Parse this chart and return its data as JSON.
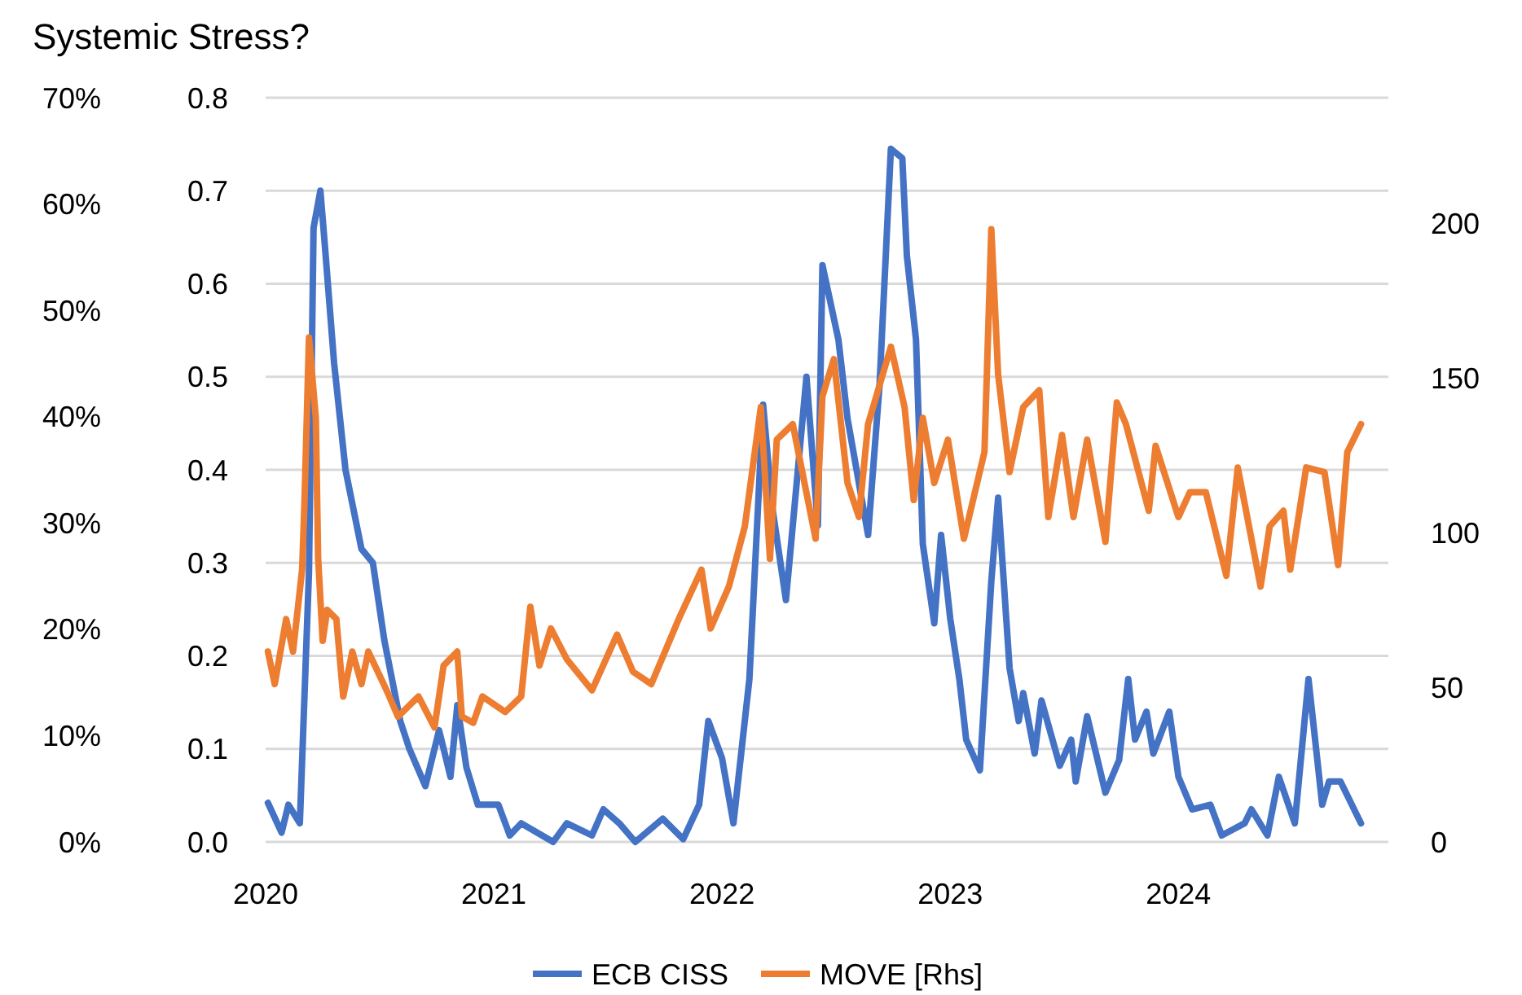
{
  "chart_data": {
    "type": "line",
    "title": "Systemic Stress?",
    "x": [
      2020.01,
      2020.07,
      2020.1,
      2020.15,
      2020.19,
      2020.21,
      2020.24,
      2020.26,
      2020.3,
      2020.35,
      2020.42,
      2020.47,
      2020.52,
      2020.59,
      2020.63,
      2020.7,
      2020.76,
      2020.81,
      2020.84,
      2020.88,
      2020.93,
      2021.02,
      2021.07,
      2021.12,
      2021.26,
      2021.32,
      2021.43,
      2021.48,
      2021.55,
      2021.62,
      2021.74,
      2021.83,
      2021.9,
      2021.94,
      2022.0,
      2022.05,
      2022.12,
      2022.18,
      2022.22,
      2022.28,
      2022.37,
      2022.42,
      2022.44,
      2022.51,
      2022.55,
      2022.64,
      2022.69,
      2022.74,
      2022.79,
      2022.81,
      2022.85,
      2022.88,
      2022.93,
      2022.96,
      2023.0,
      2023.04,
      2023.07,
      2023.13,
      2023.18,
      2023.21,
      2023.26,
      2023.3,
      2023.32,
      2023.37,
      2023.4,
      2023.48,
      2023.53,
      2023.55,
      2023.6,
      2023.68,
      2023.74,
      2023.78,
      2023.81,
      2023.86,
      2023.89,
      2023.96,
      2024.0,
      2024.06,
      2024.14,
      2024.19,
      2024.29,
      2024.32,
      2024.39,
      2024.44,
      2024.51,
      2024.57,
      2024.63,
      2024.66,
      2024.71,
      2024.8
    ],
    "series": [
      {
        "name": "ECB CISS",
        "color": "#4472c4",
        "values": [
          0.042,
          0.01,
          0.04,
          0.02,
          0.29,
          0.66,
          0.7,
          0.64,
          0.515,
          0.4,
          0.315,
          0.3,
          0.217,
          0.13,
          0.1,
          0.06,
          0.12,
          0.07,
          0.147,
          0.08,
          0.04,
          0.04,
          0.007,
          0.02,
          0.0,
          0.02,
          0.007,
          0.035,
          0.02,
          0.0,
          0.025,
          0.003,
          0.04,
          0.13,
          0.09,
          0.02,
          0.175,
          0.47,
          0.36,
          0.26,
          0.5,
          0.34,
          0.62,
          0.54,
          0.455,
          0.33,
          0.49,
          0.745,
          0.735,
          0.63,
          0.54,
          0.32,
          0.235,
          0.33,
          0.24,
          0.175,
          0.11,
          0.077,
          0.28,
          0.37,
          0.187,
          0.13,
          0.16,
          0.095,
          0.152,
          0.082,
          0.11,
          0.065,
          0.135,
          0.053,
          0.088,
          0.175,
          0.11,
          0.14,
          0.095,
          0.14,
          0.07,
          0.035,
          0.04,
          0.007,
          0.02,
          0.035,
          0.007,
          0.07,
          0.02,
          0.175,
          0.04,
          0.065,
          0.065,
          0.02
        ]
      },
      {
        "name": "MOVE [Rhs]",
        "color": "#ed7d31",
        "axis": "y2",
        "x": [
          2020.01,
          2020.04,
          2020.09,
          2020.12,
          2020.16,
          2020.17,
          2020.19,
          2020.22,
          2020.23,
          2020.25,
          2020.27,
          2020.31,
          2020.34,
          2020.38,
          2020.42,
          2020.45,
          2020.53,
          2020.58,
          2020.67,
          2020.74,
          2020.78,
          2020.84,
          2020.86,
          2020.91,
          2020.95,
          2021.05,
          2021.12,
          2021.16,
          2021.2,
          2021.25,
          2021.32,
          2021.43,
          2021.54,
          2021.61,
          2021.69,
          2021.81,
          2021.91,
          2021.95,
          2022.03,
          2022.1,
          2022.17,
          2022.21,
          2022.24,
          2022.31,
          2022.41,
          2022.44,
          2022.49,
          2022.55,
          2022.6,
          2022.64,
          2022.74,
          2022.8,
          2022.84,
          2022.88,
          2022.93,
          2022.99,
          2023.06,
          2023.15,
          2023.18,
          2023.21,
          2023.26,
          2023.32,
          2023.39,
          2023.43,
          2023.49,
          2023.54,
          2023.6,
          2023.68,
          2023.73,
          2023.77,
          2023.87,
          2023.9,
          2024.0,
          2024.05,
          2024.12,
          2024.21,
          2024.26,
          2024.36,
          2024.4,
          2024.46,
          2024.49,
          2024.56,
          2024.64,
          2024.7,
          2024.74,
          2024.8
        ],
        "values": [
          61.5,
          51,
          72,
          61.5,
          88,
          109,
          163,
          137,
          92,
          65,
          75,
          72,
          47,
          61.5,
          51,
          61.5,
          49,
          40.5,
          47,
          37,
          57,
          61.5,
          40.5,
          38.5,
          47,
          42,
          47,
          76,
          57,
          69,
          59,
          49,
          67,
          55,
          51,
          72,
          88,
          69,
          82.5,
          102,
          140.5,
          91.5,
          130,
          135,
          98,
          144,
          156,
          116,
          105,
          135,
          160,
          140.5,
          110.5,
          137,
          116,
          130,
          98,
          126,
          198,
          151,
          119.5,
          140.5,
          146,
          105,
          131.5,
          105,
          130,
          97,
          142,
          135,
          107,
          128,
          105,
          113,
          113,
          86,
          121,
          82.5,
          102,
          107,
          88,
          121,
          119.5,
          89.5,
          126,
          135
        ]
      }
    ],
    "xlim": [
      2020,
      2024.92
    ],
    "xticks": [
      2020,
      2021,
      2022,
      2023,
      2024
    ],
    "ylim": [
      0,
      0.8
    ],
    "yticks": [
      {
        "value": 0,
        "label": "0.0"
      },
      0.1,
      0.2,
      0.3,
      0.4,
      0.5,
      0.6,
      0.7,
      0.8
    ],
    "y2lim": [
      0,
      240.5
    ],
    "y2ticks": [
      0,
      50,
      100,
      150,
      200
    ],
    "y3lim": [
      0,
      70
    ],
    "y3ticks": [
      {
        "value": 0,
        "label": "0%"
      },
      {
        "value": 10,
        "label": "10%"
      },
      {
        "value": 20,
        "label": "20%"
      },
      {
        "value": 30,
        "label": "30%"
      },
      {
        "value": 40,
        "label": "40%"
      },
      {
        "value": 50,
        "label": "50%"
      },
      {
        "value": 60,
        "label": "60%"
      },
      {
        "value": 70,
        "label": "70%"
      }
    ],
    "grid": "y",
    "legend": "bottom",
    "marker": "none",
    "line_style": "solid"
  }
}
